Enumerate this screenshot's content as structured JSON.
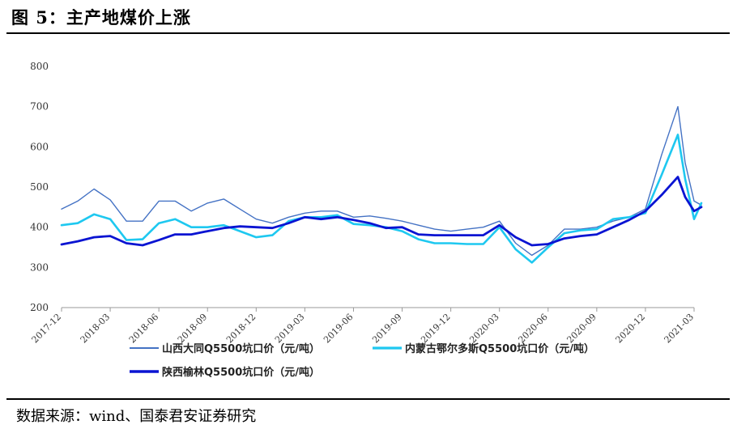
{
  "title": "图 5：主产地煤价上涨",
  "source": "数据来源：wind、国泰君安证券研究",
  "chart_data": {
    "type": "line",
    "title": "",
    "xlabel": "",
    "ylabel": "",
    "ylim": [
      200,
      800
    ],
    "yticks": [
      200,
      300,
      400,
      500,
      600,
      700,
      800
    ],
    "xticks": [
      "2017-12",
      "2018-03",
      "2018-06",
      "2018-09",
      "2018-12",
      "2019-03",
      "2019-06",
      "2019-09",
      "2019-12",
      "2020-03",
      "2020-06",
      "2020-09",
      "2020-12",
      "2021-03"
    ],
    "grid": false,
    "legend_position": "bottom",
    "series": [
      {
        "name": "山西大同Q5500坑口价（元/吨）",
        "color": "#4472C4",
        "points": [
          [
            "2017-12",
            445
          ],
          [
            "2018-01",
            465
          ],
          [
            "2018-02",
            495
          ],
          [
            "2018-03",
            468
          ],
          [
            "2018-04",
            415
          ],
          [
            "2018-05",
            415
          ],
          [
            "2018-06",
            465
          ],
          [
            "2018-07",
            465
          ],
          [
            "2018-08",
            440
          ],
          [
            "2018-09",
            460
          ],
          [
            "2018-10",
            470
          ],
          [
            "2018-11",
            445
          ],
          [
            "2018-12",
            420
          ],
          [
            "2019-01",
            410
          ],
          [
            "2019-02",
            425
          ],
          [
            "2019-03",
            435
          ],
          [
            "2019-04",
            440
          ],
          [
            "2019-05",
            440
          ],
          [
            "2019-06",
            425
          ],
          [
            "2019-07",
            428
          ],
          [
            "2019-08",
            422
          ],
          [
            "2019-09",
            415
          ],
          [
            "2019-10",
            405
          ],
          [
            "2019-11",
            395
          ],
          [
            "2019-12",
            390
          ],
          [
            "2020-01",
            395
          ],
          [
            "2020-02",
            400
          ],
          [
            "2020-03",
            415
          ],
          [
            "2020-04",
            360
          ],
          [
            "2020-05",
            330
          ],
          [
            "2020-06",
            355
          ],
          [
            "2020-07",
            395
          ],
          [
            "2020-08",
            395
          ],
          [
            "2020-09",
            400
          ],
          [
            "2020-10",
            415
          ],
          [
            "2020-11",
            425
          ],
          [
            "2020-12",
            445
          ],
          [
            "2021-01",
            580
          ],
          [
            "2021-02",
            700
          ],
          [
            "2021-02b",
            560
          ],
          [
            "2021-03",
            465
          ],
          [
            "2021-03b",
            455
          ]
        ]
      },
      {
        "name": "内蒙古鄂尔多斯Q5500坑口价（元/吨）",
        "color": "#1EC8F0",
        "points": [
          [
            "2017-12",
            405
          ],
          [
            "2018-01",
            410
          ],
          [
            "2018-02",
            432
          ],
          [
            "2018-03",
            420
          ],
          [
            "2018-04",
            368
          ],
          [
            "2018-05",
            370
          ],
          [
            "2018-06",
            410
          ],
          [
            "2018-07",
            420
          ],
          [
            "2018-08",
            400
          ],
          [
            "2018-09",
            400
          ],
          [
            "2018-10",
            405
          ],
          [
            "2018-11",
            390
          ],
          [
            "2018-12",
            375
          ],
          [
            "2019-01",
            380
          ],
          [
            "2019-02",
            415
          ],
          [
            "2019-03",
            425
          ],
          [
            "2019-04",
            425
          ],
          [
            "2019-05",
            430
          ],
          [
            "2019-06",
            408
          ],
          [
            "2019-07",
            405
          ],
          [
            "2019-08",
            400
          ],
          [
            "2019-09",
            390
          ],
          [
            "2019-10",
            370
          ],
          [
            "2019-11",
            360
          ],
          [
            "2019-12",
            360
          ],
          [
            "2020-01",
            358
          ],
          [
            "2020-02",
            358
          ],
          [
            "2020-03",
            400
          ],
          [
            "2020-04",
            345
          ],
          [
            "2020-05",
            312
          ],
          [
            "2020-06",
            350
          ],
          [
            "2020-07",
            385
          ],
          [
            "2020-08",
            392
          ],
          [
            "2020-09",
            395
          ],
          [
            "2020-10",
            420
          ],
          [
            "2020-11",
            425
          ],
          [
            "2020-12",
            435
          ],
          [
            "2021-01",
            530
          ],
          [
            "2021-02",
            630
          ],
          [
            "2021-02b",
            520
          ],
          [
            "2021-03",
            420
          ],
          [
            "2021-03b",
            460
          ]
        ]
      },
      {
        "name": "陕西榆林Q5500坑口价（元/吨）",
        "color": "#0A14D2",
        "points": [
          [
            "2017-12",
            357
          ],
          [
            "2018-01",
            365
          ],
          [
            "2018-02",
            375
          ],
          [
            "2018-03",
            378
          ],
          [
            "2018-04",
            360
          ],
          [
            "2018-05",
            355
          ],
          [
            "2018-06",
            368
          ],
          [
            "2018-07",
            382
          ],
          [
            "2018-08",
            382
          ],
          [
            "2018-09",
            390
          ],
          [
            "2018-10",
            398
          ],
          [
            "2018-11",
            402
          ],
          [
            "2018-12",
            400
          ],
          [
            "2019-01",
            398
          ],
          [
            "2019-02",
            410
          ],
          [
            "2019-03",
            425
          ],
          [
            "2019-04",
            420
          ],
          [
            "2019-05",
            425
          ],
          [
            "2019-06",
            418
          ],
          [
            "2019-07",
            410
          ],
          [
            "2019-08",
            398
          ],
          [
            "2019-09",
            400
          ],
          [
            "2019-10",
            382
          ],
          [
            "2019-11",
            380
          ],
          [
            "2019-12",
            380
          ],
          [
            "2020-01",
            380
          ],
          [
            "2020-02",
            380
          ],
          [
            "2020-03",
            405
          ],
          [
            "2020-04",
            375
          ],
          [
            "2020-05",
            355
          ],
          [
            "2020-06",
            358
          ],
          [
            "2020-07",
            372
          ],
          [
            "2020-08",
            378
          ],
          [
            "2020-09",
            382
          ],
          [
            "2020-10",
            400
          ],
          [
            "2020-11",
            418
          ],
          [
            "2020-12",
            440
          ],
          [
            "2021-01",
            480
          ],
          [
            "2021-02",
            525
          ],
          [
            "2021-02b",
            475
          ],
          [
            "2021-03",
            440
          ],
          [
            "2021-03b",
            450
          ]
        ]
      }
    ]
  }
}
